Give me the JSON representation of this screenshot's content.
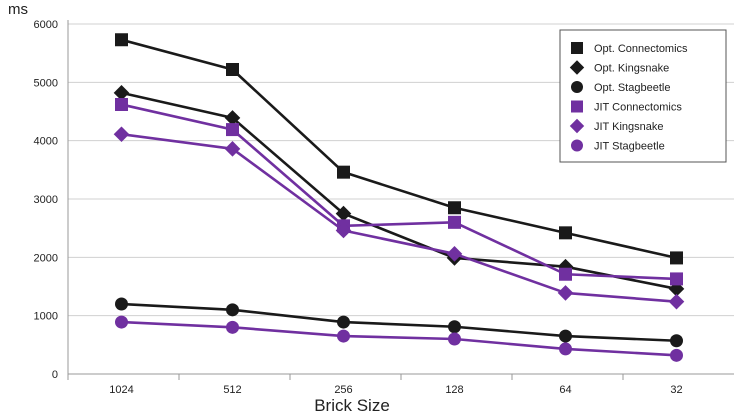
{
  "chart_data": {
    "type": "line",
    "title": "",
    "xlabel": "Brick Size",
    "ylabel": "ms",
    "categories": [
      "1024",
      "512",
      "256",
      "128",
      "64",
      "32"
    ],
    "ylim": [
      0,
      6000
    ],
    "yticks": [
      "0",
      "1000",
      "2000",
      "3000",
      "4000",
      "5000",
      "6000"
    ],
    "grid": true,
    "legend_position": "top-right",
    "series": [
      {
        "name": "Opt. Connectomics",
        "color": "#1a1a1a",
        "marker": "square",
        "values": [
          5730,
          5220,
          3460,
          2850,
          2420,
          1990
        ]
      },
      {
        "name": "Opt. Kingsnake",
        "color": "#1a1a1a",
        "marker": "diamond",
        "values": [
          4820,
          4390,
          2750,
          1990,
          1840,
          1460
        ]
      },
      {
        "name": "Opt. Stagbeetle",
        "color": "#1a1a1a",
        "marker": "circle",
        "values": [
          1200,
          1100,
          890,
          810,
          650,
          570
        ]
      },
      {
        "name": "JIT Connectomics",
        "color": "#7030a0",
        "marker": "square",
        "values": [
          4620,
          4190,
          2540,
          2600,
          1710,
          1630
        ]
      },
      {
        "name": "JIT Kingsnake",
        "color": "#7030a0",
        "marker": "diamond",
        "values": [
          4110,
          3860,
          2460,
          2060,
          1390,
          1240
        ]
      },
      {
        "name": "JIT Stagbeetle",
        "color": "#7030a0",
        "marker": "circle",
        "values": [
          890,
          800,
          650,
          600,
          430,
          320
        ]
      }
    ]
  }
}
